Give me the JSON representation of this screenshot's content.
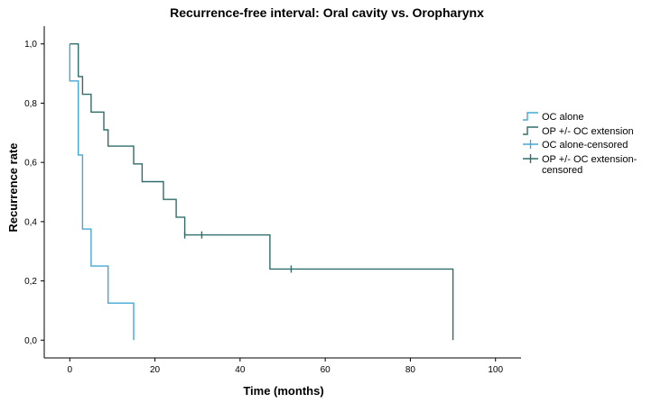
{
  "chart_data": {
    "type": "line",
    "title": "Recurrence-free interval: Oral cavity vs. Oropharynx",
    "xlabel": "Time (months)",
    "ylabel": "Recurrence rate",
    "xlim": [
      -6,
      106
    ],
    "ylim": [
      -0.06,
      1.06
    ],
    "x_ticks": [
      {
        "value": 0,
        "label": "0"
      },
      {
        "value": 20,
        "label": "20"
      },
      {
        "value": 40,
        "label": "40"
      },
      {
        "value": 60,
        "label": "60"
      },
      {
        "value": 80,
        "label": "80"
      },
      {
        "value": 100,
        "label": "100"
      }
    ],
    "y_ticks": [
      {
        "value": 0.0,
        "label": "0,0"
      },
      {
        "value": 0.2,
        "label": "0,2"
      },
      {
        "value": 0.4,
        "label": "0,4"
      },
      {
        "value": 0.6,
        "label": "0,6"
      },
      {
        "value": 0.8,
        "label": "0,8"
      },
      {
        "value": 1.0,
        "label": "1,0"
      }
    ],
    "grid": false,
    "legend_position": "right",
    "series": [
      {
        "name": "OC alone",
        "color": "#43a8d4",
        "step_points": [
          [
            0,
            1.0
          ],
          [
            0,
            0.875
          ],
          [
            2,
            0.875
          ],
          [
            2,
            0.625
          ],
          [
            3,
            0.625
          ],
          [
            3,
            0.375
          ],
          [
            5,
            0.375
          ],
          [
            5,
            0.25
          ],
          [
            9,
            0.25
          ],
          [
            9,
            0.125
          ],
          [
            15,
            0.125
          ],
          [
            15,
            0.0
          ]
        ]
      },
      {
        "name": "OP +/- OC extension",
        "color": "#2f6d6a",
        "step_points": [
          [
            0,
            1.0
          ],
          [
            2,
            1.0
          ],
          [
            2,
            0.89
          ],
          [
            3,
            0.89
          ],
          [
            3,
            0.83
          ],
          [
            5,
            0.83
          ],
          [
            5,
            0.77
          ],
          [
            8,
            0.77
          ],
          [
            8,
            0.71
          ],
          [
            9,
            0.71
          ],
          [
            9,
            0.655
          ],
          [
            15,
            0.655
          ],
          [
            15,
            0.595
          ],
          [
            17,
            0.595
          ],
          [
            17,
            0.535
          ],
          [
            22,
            0.535
          ],
          [
            22,
            0.475
          ],
          [
            25,
            0.475
          ],
          [
            25,
            0.415
          ],
          [
            27,
            0.415
          ],
          [
            27,
            0.355
          ],
          [
            47,
            0.355
          ],
          [
            47,
            0.24
          ],
          [
            90,
            0.24
          ],
          [
            90,
            0.0
          ]
        ]
      }
    ],
    "censored": [
      {
        "name": "OC alone-censored",
        "color": "#43a8d4",
        "points": []
      },
      {
        "name": "OP +/- OC extension-censored",
        "color": "#2f6d6a",
        "points": [
          [
            27,
            0.355
          ],
          [
            31,
            0.355
          ],
          [
            52,
            0.24
          ]
        ]
      }
    ],
    "legend": [
      {
        "label": "OC alone",
        "color": "#43a8d4",
        "kind": "step"
      },
      {
        "label": "OP +/- OC extension",
        "color": "#2f6d6a",
        "kind": "step"
      },
      {
        "label": "OC alone-censored",
        "color": "#43a8d4",
        "kind": "censor"
      },
      {
        "label_lines": [
          "OP +/- OC extension-",
          "censored"
        ],
        "color": "#2f6d6a",
        "kind": "censor"
      }
    ]
  }
}
